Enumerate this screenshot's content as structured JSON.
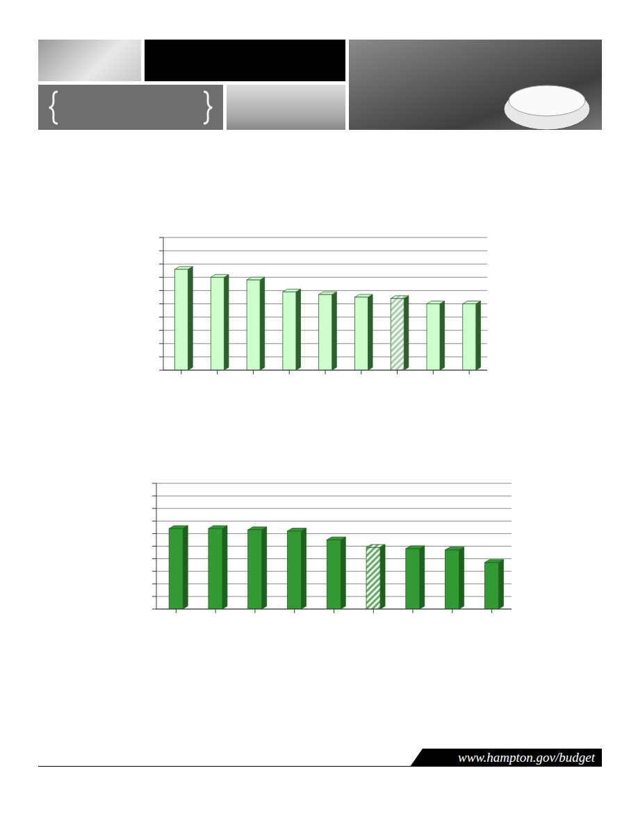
{
  "chart_data": [
    {
      "type": "bar",
      "categories": [
        null,
        null,
        null,
        null,
        null,
        null,
        null,
        null,
        null
      ],
      "values": [
        76,
        70,
        68,
        59,
        57,
        55,
        54,
        50,
        50
      ],
      "color": "#ccffcc",
      "colors": [
        "#ccffcc",
        "#ccffcc",
        "#ccffcc",
        "#ccffcc",
        "#ccffcc",
        "#ccffcc",
        "#a9cfa9",
        "#ccffcc",
        "#ccffcc"
      ],
      "ylim": [
        0,
        100
      ],
      "yticks": [
        0,
        10,
        20,
        30,
        40,
        50,
        60,
        70,
        80,
        90,
        100
      ],
      "grid": true,
      "tick_labels": false
    },
    {
      "type": "bar",
      "categories": [
        null,
        null,
        null,
        null,
        null,
        null,
        null,
        null,
        null
      ],
      "values": [
        64,
        64,
        63,
        62,
        55,
        49,
        48,
        47,
        37
      ],
      "color": "#339933",
      "colors": [
        "#339933",
        "#339933",
        "#339933",
        "#339933",
        "#339933",
        "#5fae5f",
        "#339933",
        "#339933",
        "#339933"
      ],
      "ylim": [
        0,
        100
      ],
      "yticks": [
        0,
        10,
        20,
        30,
        40,
        50,
        60,
        70,
        80,
        90,
        100
      ],
      "grid": true,
      "tick_labels": false
    }
  ],
  "footer": {
    "text": "www.hampton.gov/budget"
  }
}
